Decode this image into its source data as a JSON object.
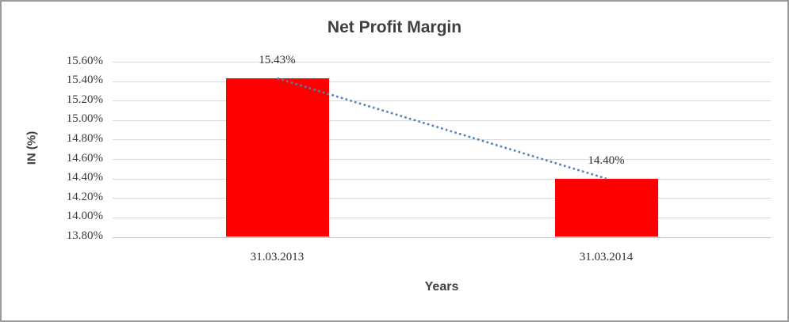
{
  "chart_data": {
    "type": "bar",
    "title": "Net Profit Margin",
    "ylabel": "IN (%)",
    "xlabel": "Years",
    "categories": [
      "31.03.2013",
      "31.03.2014"
    ],
    "values": [
      15.43,
      14.4
    ],
    "data_labels": [
      "15.43%",
      "14.40%"
    ],
    "y_ticks": [
      "15.60%",
      "15.40%",
      "15.20%",
      "15.00%",
      "14.80%",
      "14.60%",
      "14.40%",
      "14.20%",
      "14.00%",
      "13.80%"
    ],
    "ylim": [
      13.8,
      15.6
    ],
    "grid": true,
    "legend": "none",
    "trendline": {
      "type": "linear",
      "style": "dotted",
      "color": "#4F81BD"
    },
    "colors": {
      "bar": "#FF0000",
      "gridline": "#D9D9D9",
      "axis_line": "#BFBFBF",
      "text": "#3F3F3F"
    }
  }
}
